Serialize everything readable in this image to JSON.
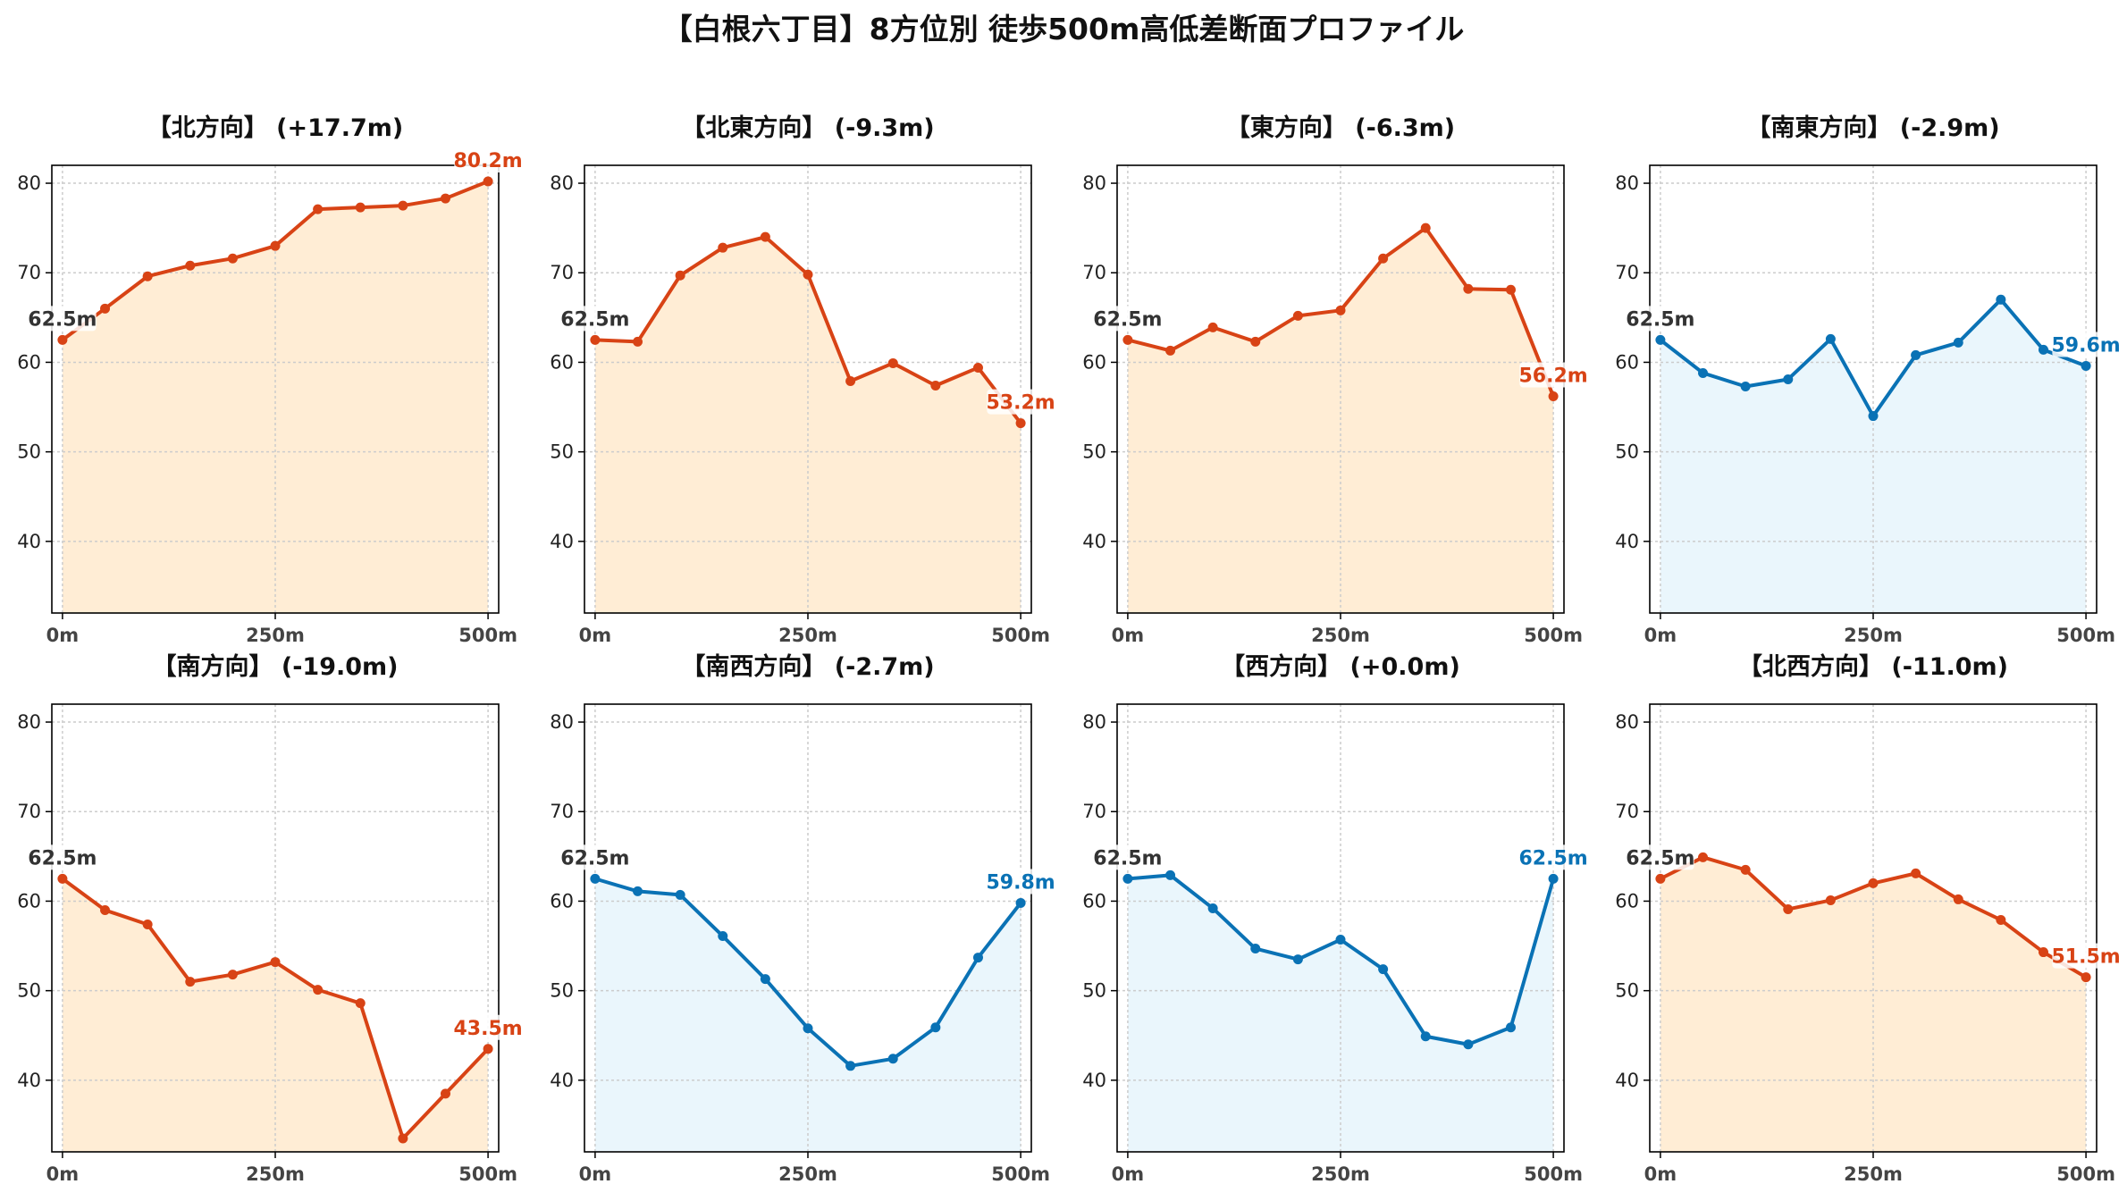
{
  "title": "【白根六丁目】8方位別 徒歩500m高低差断面プロファイル",
  "colors": {
    "rise": "#d84315",
    "rise_fill": "#ffedd5",
    "fall": "#0a72b5",
    "fall_fill": "#eaf6fc",
    "start_label": "#333333",
    "grid": "#cccccc",
    "axis": "#000000"
  },
  "chart_data": [
    {
      "type": "line",
      "title": "【北方向】 (+17.7m)",
      "trend": "rise",
      "x": [
        0,
        50,
        100,
        150,
        200,
        250,
        300,
        350,
        400,
        450,
        500
      ],
      "categories": [
        "0m",
        "250m",
        "500m"
      ],
      "xticks": [
        0,
        250,
        500
      ],
      "yticks": [
        40,
        50,
        60,
        70,
        80
      ],
      "ylim": [
        32,
        82
      ],
      "values": [
        62.5,
        66.0,
        69.6,
        70.8,
        71.6,
        73.0,
        77.1,
        77.3,
        77.5,
        78.3,
        80.2
      ],
      "start_label": "62.5m",
      "end_label": "80.2m"
    },
    {
      "type": "line",
      "title": "【北東方向】 (-9.3m)",
      "trend": "rise",
      "x": [
        0,
        50,
        100,
        150,
        200,
        250,
        300,
        350,
        400,
        450,
        500
      ],
      "categories": [
        "0m",
        "250m",
        "500m"
      ],
      "xticks": [
        0,
        250,
        500
      ],
      "yticks": [
        40,
        50,
        60,
        70,
        80
      ],
      "ylim": [
        32,
        82
      ],
      "values": [
        62.5,
        62.3,
        69.7,
        72.8,
        74.0,
        69.8,
        57.9,
        59.9,
        57.4,
        59.4,
        53.2
      ],
      "start_label": "62.5m",
      "end_label": "53.2m"
    },
    {
      "type": "line",
      "title": "【東方向】 (-6.3m)",
      "trend": "rise",
      "x": [
        0,
        50,
        100,
        150,
        200,
        250,
        300,
        350,
        400,
        450,
        500
      ],
      "categories": [
        "0m",
        "250m",
        "500m"
      ],
      "xticks": [
        0,
        250,
        500
      ],
      "yticks": [
        40,
        50,
        60,
        70,
        80
      ],
      "ylim": [
        32,
        82
      ],
      "values": [
        62.5,
        61.3,
        63.9,
        62.3,
        65.2,
        65.8,
        71.6,
        75.0,
        68.2,
        68.1,
        56.2
      ],
      "start_label": "62.5m",
      "end_label": "56.2m"
    },
    {
      "type": "line",
      "title": "【南東方向】 (-2.9m)",
      "trend": "fall",
      "x": [
        0,
        50,
        100,
        150,
        200,
        250,
        300,
        350,
        400,
        450,
        500
      ],
      "categories": [
        "0m",
        "250m",
        "500m"
      ],
      "xticks": [
        0,
        250,
        500
      ],
      "yticks": [
        40,
        50,
        60,
        70,
        80
      ],
      "ylim": [
        32,
        82
      ],
      "values": [
        62.5,
        58.8,
        57.3,
        58.1,
        62.6,
        54.0,
        60.8,
        62.2,
        67.0,
        61.4,
        59.6
      ],
      "start_label": "62.5m",
      "end_label": "59.6m"
    },
    {
      "type": "line",
      "title": "【南方向】 (-19.0m)",
      "trend": "rise",
      "x": [
        0,
        50,
        100,
        150,
        200,
        250,
        300,
        350,
        400,
        450,
        500
      ],
      "categories": [
        "0m",
        "250m",
        "500m"
      ],
      "xticks": [
        0,
        250,
        500
      ],
      "yticks": [
        40,
        50,
        60,
        70,
        80
      ],
      "ylim": [
        32,
        82
      ],
      "values": [
        62.5,
        59.0,
        57.4,
        51.0,
        51.8,
        53.2,
        50.1,
        48.6,
        33.5,
        38.5,
        43.5
      ],
      "start_label": "62.5m",
      "end_label": "43.5m"
    },
    {
      "type": "line",
      "title": "【南西方向】 (-2.7m)",
      "trend": "fall",
      "x": [
        0,
        50,
        100,
        150,
        200,
        250,
        300,
        350,
        400,
        450,
        500
      ],
      "categories": [
        "0m",
        "250m",
        "500m"
      ],
      "xticks": [
        0,
        250,
        500
      ],
      "yticks": [
        40,
        50,
        60,
        70,
        80
      ],
      "ylim": [
        32,
        82
      ],
      "values": [
        62.5,
        61.1,
        60.7,
        56.1,
        51.3,
        45.8,
        41.6,
        42.4,
        45.9,
        53.7,
        59.8
      ],
      "start_label": "62.5m",
      "end_label": "59.8m"
    },
    {
      "type": "line",
      "title": "【西方向】 (+0.0m)",
      "trend": "fall",
      "x": [
        0,
        50,
        100,
        150,
        200,
        250,
        300,
        350,
        400,
        450,
        500
      ],
      "categories": [
        "0m",
        "250m",
        "500m"
      ],
      "xticks": [
        0,
        250,
        500
      ],
      "yticks": [
        40,
        50,
        60,
        70,
        80
      ],
      "ylim": [
        32,
        82
      ],
      "values": [
        62.5,
        62.9,
        59.2,
        54.7,
        53.5,
        55.7,
        52.4,
        44.9,
        44.0,
        45.9,
        62.5
      ],
      "start_label": "62.5m",
      "end_label": "62.5m"
    },
    {
      "type": "line",
      "title": "【北西方向】 (-11.0m)",
      "trend": "rise",
      "x": [
        0,
        50,
        100,
        150,
        200,
        250,
        300,
        350,
        400,
        450,
        500
      ],
      "categories": [
        "0m",
        "250m",
        "500m"
      ],
      "xticks": [
        0,
        250,
        500
      ],
      "yticks": [
        40,
        50,
        60,
        70,
        80
      ],
      "ylim": [
        32,
        82
      ],
      "values": [
        62.5,
        64.9,
        63.5,
        59.1,
        60.1,
        62.0,
        63.1,
        60.2,
        57.9,
        54.3,
        51.5
      ],
      "start_label": "62.5m",
      "end_label": "51.5m"
    }
  ]
}
